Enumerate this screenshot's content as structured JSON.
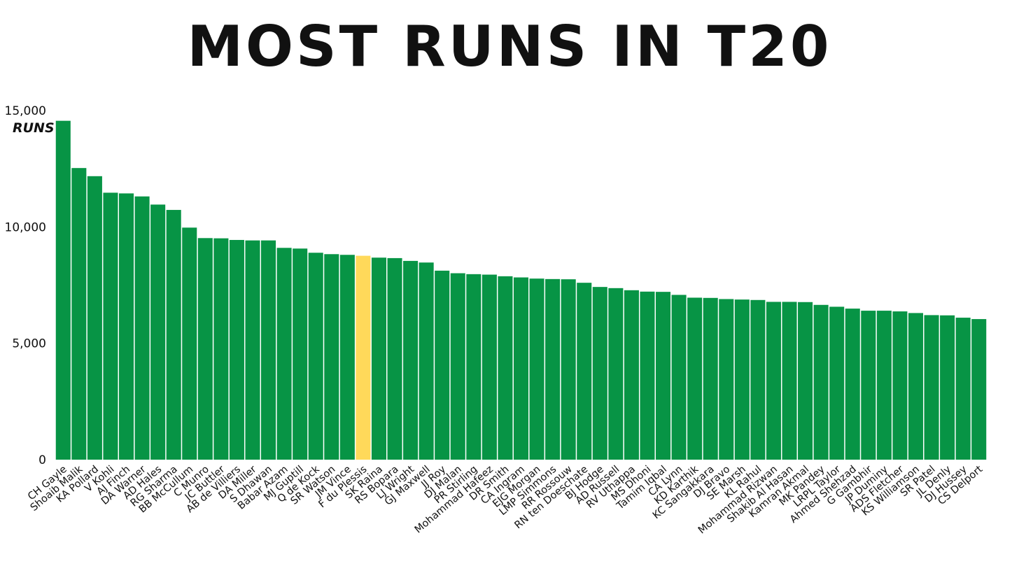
{
  "colors": {
    "bar": "#079445",
    "highlight": "#FFD95A",
    "text": "#111111"
  },
  "chart_data": {
    "type": "bar",
    "title": "MOST RUNS IN T20",
    "ylabel": "RUNS",
    "xlabel": "",
    "ylim": [
      0,
      15000
    ],
    "yticks": [
      0,
      5000,
      10000,
      15000
    ],
    "ytick_labels": [
      "0",
      "5,000",
      "10,000",
      "15,000"
    ],
    "grid": false,
    "highlight_category": "F du Plessis",
    "categories": [
      "CH Gayle",
      "Shoaib Malik",
      "KA Pollard",
      "V Kohli",
      "AJ Finch",
      "DA Warner",
      "AD Hales",
      "RG Sharma",
      "BB McCullum",
      "C Munro",
      "JC Buttler",
      "AB de Villiers",
      "DA Miller",
      "S Dhawan",
      "Babar Azam",
      "MJ Guptill",
      "Q de Kock",
      "SR Watson",
      "JM Vince",
      "F du Plessis",
      "SK Raina",
      "RS Bopara",
      "LJ Wright",
      "GJ Maxwell",
      "JJ Roy",
      "DJ Malan",
      "PR Stirling",
      "Mohammad Hafeez",
      "DR Smith",
      "CA Ingram",
      "EJG Morgan",
      "LMP Simmons",
      "RR Rossouw",
      "RN ten Doeschate",
      "BJ Hodge",
      "AD Russell",
      "RV Uthappa",
      "MS Dhoni",
      "Tamim Iqbal",
      "CA Lynn",
      "KD Karthik",
      "KC Sangakkara",
      "DJ Bravo",
      "SE Marsh",
      "KL Rahul",
      "Mohammad Rizwan",
      "Shakib Al Hasan",
      "Kamran Akmal",
      "MK Pandey",
      "LRPL Taylor",
      "Ahmed Shehzad",
      "G Gambhir",
      "JP Duminy",
      "ADS Fletcher",
      "KS Williamson",
      "SR Patel",
      "JL Denly",
      "DJ Hussey",
      "CS Delport"
    ],
    "values": [
      14560,
      12530,
      12180,
      11470,
      11440,
      11310,
      10960,
      10730,
      9970,
      9520,
      9510,
      9440,
      9420,
      9420,
      9100,
      9070,
      8890,
      8830,
      8800,
      8760,
      8680,
      8660,
      8540,
      8470,
      8120,
      8010,
      7970,
      7950,
      7880,
      7830,
      7780,
      7760,
      7750,
      7600,
      7420,
      7370,
      7280,
      7220,
      7210,
      7080,
      6960,
      6950,
      6900,
      6880,
      6860,
      6780,
      6780,
      6770,
      6650,
      6570,
      6490,
      6400,
      6400,
      6370,
      6300,
      6210,
      6200,
      6100,
      6040
    ]
  }
}
